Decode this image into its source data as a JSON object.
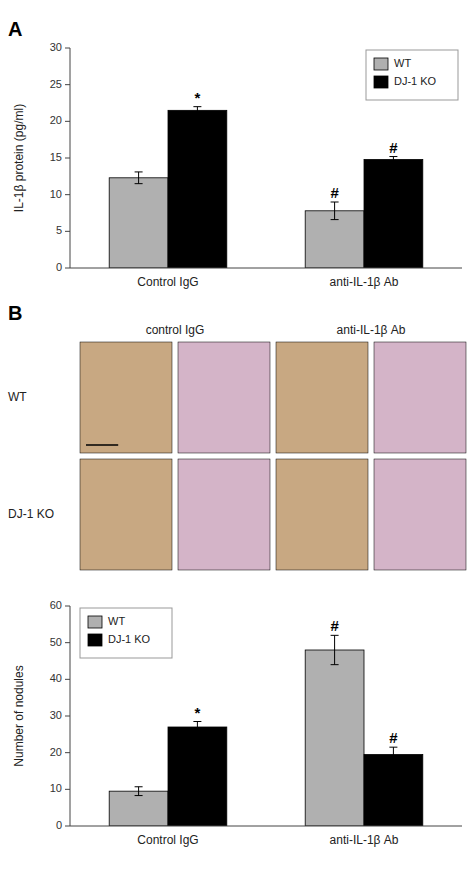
{
  "chart_data": [
    {
      "type": "bar",
      "title": "A",
      "ylabel": "IL-1β protein (pg/ml)",
      "categories": [
        "Control IgG",
        "anti-IL-1β Ab"
      ],
      "series": [
        {
          "name": "WT",
          "color": "#b0b0b0",
          "values": [
            12.3,
            7.8
          ],
          "errors": [
            0.8,
            1.2
          ],
          "annotations": [
            null,
            "#"
          ]
        },
        {
          "name": "DJ-1 KO",
          "color": "#000000",
          "values": [
            21.5,
            14.8
          ],
          "errors": [
            0.5,
            0.4
          ],
          "annotations": [
            "*",
            "#"
          ]
        }
      ],
      "ylim": [
        0,
        30
      ],
      "yticks": [
        0,
        5,
        10,
        15,
        20,
        25,
        30
      ],
      "legend": "upper right"
    },
    {
      "type": "image_grid",
      "title": "B",
      "column_labels": [
        "control IgG",
        "anti-IL-1β Ab"
      ],
      "row_labels": [
        "WT",
        "DJ-1 KO"
      ]
    },
    {
      "type": "bar",
      "ylabel": "Number of nodules",
      "categories": [
        "Control IgG",
        "anti-IL-1β Ab"
      ],
      "series": [
        {
          "name": "WT",
          "color": "#b0b0b0",
          "values": [
            9.5,
            48.0
          ],
          "errors": [
            1.2,
            4.0
          ],
          "annotations": [
            null,
            "#"
          ]
        },
        {
          "name": "DJ-1 KO",
          "color": "#000000",
          "values": [
            27.0,
            19.5
          ],
          "errors": [
            1.5,
            2.0
          ],
          "annotations": [
            "*",
            "#"
          ]
        }
      ],
      "ylim": [
        0,
        60
      ],
      "yticks": [
        0,
        10,
        20,
        30,
        40,
        50,
        60
      ],
      "legend": "upper left"
    }
  ]
}
